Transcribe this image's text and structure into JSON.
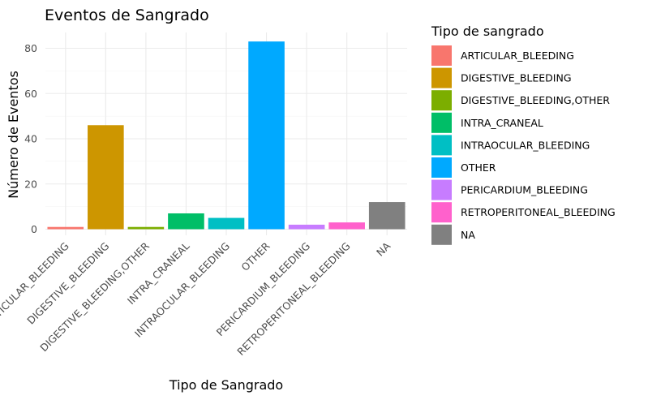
{
  "chart_data": {
    "type": "bar",
    "title": "Eventos de Sangrado",
    "xlabel": "Tipo de Sangrado",
    "ylabel": "Número de Eventos",
    "categories": [
      "ARTICULAR_BLEEDING",
      "DIGESTIVE_BLEEDING",
      "DIGESTIVE_BLEEDING,OTHER",
      "INTRA_CRANEAL",
      "INTRAOCULAR_BLEEDING",
      "OTHER",
      "PERICARDIUM_BLEEDING",
      "RETROPERITONEAL_BLEEDING",
      "NA"
    ],
    "values": [
      1,
      46,
      1,
      7,
      5,
      83,
      2,
      3,
      12
    ],
    "colors": [
      "#F8766D",
      "#CD9600",
      "#7CAE00",
      "#00BE67",
      "#00BFC4",
      "#00A9FF",
      "#C77CFF",
      "#FF61CC",
      "#808080"
    ],
    "ylim": [
      0,
      87
    ],
    "yticks": [
      0,
      20,
      40,
      60,
      80
    ],
    "grid": true,
    "legend": {
      "title": "Tipo de sangrado",
      "position": "right",
      "entries": [
        "ARTICULAR_BLEEDING",
        "DIGESTIVE_BLEEDING",
        "DIGESTIVE_BLEEDING,OTHER",
        "INTRA_CRANEAL",
        "INTRAOCULAR_BLEEDING",
        "OTHER",
        "PERICARDIUM_BLEEDING",
        "RETROPERITONEAL_BLEEDING",
        "NA"
      ]
    }
  }
}
